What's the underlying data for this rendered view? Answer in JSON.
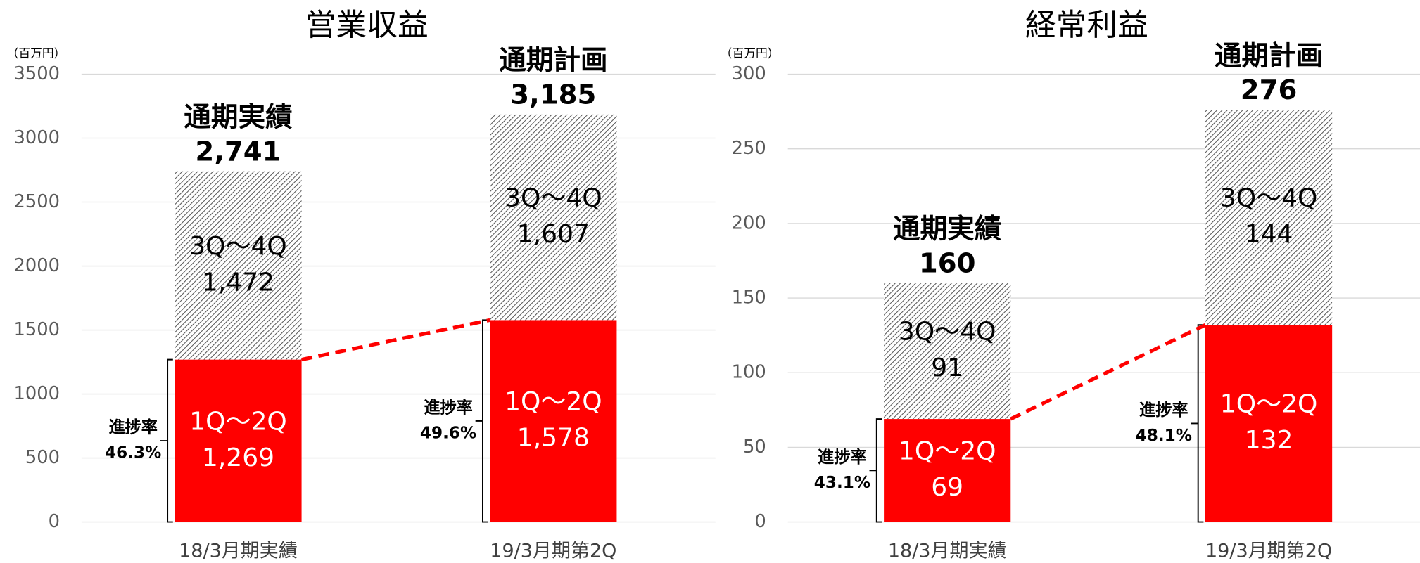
{
  "chart_data": [
    {
      "type": "stacked_bar",
      "title": "営業収益",
      "unit": "（百万円）",
      "categories": [
        "18/3月期実績",
        "19/3月期第2Q"
      ],
      "series": [
        {
          "name": "1Q～2Q",
          "color": "#ff0000",
          "values": [
            1269,
            1578
          ],
          "value_labels": [
            "1,269",
            "1,578"
          ]
        },
        {
          "name": "3Q～4Q",
          "color": "hatch",
          "values": [
            1472,
            1607
          ],
          "value_labels": [
            "1,472",
            "1,607"
          ]
        }
      ],
      "total_names": [
        "通期実績",
        "通期計画"
      ],
      "totals": [
        2741,
        3185
      ],
      "total_labels": [
        "2,741",
        "3,185"
      ],
      "progress_title": "進捗率",
      "progress": [
        46.3,
        49.6
      ],
      "progress_labels": [
        "46.3%",
        "49.6%"
      ],
      "ylim": [
        0,
        3500
      ],
      "yticks": [
        0,
        500,
        1000,
        1500,
        2000,
        2500,
        3000,
        3500
      ],
      "grid": true
    },
    {
      "type": "stacked_bar",
      "title": "経常利益",
      "unit": "（百万円）",
      "categories": [
        "18/3月期実績",
        "19/3月期第2Q"
      ],
      "series": [
        {
          "name": "1Q～2Q",
          "color": "#ff0000",
          "values": [
            69,
            132
          ]
        },
        {
          "name": "3Q～4Q",
          "color": "hatch",
          "values": [
            91,
            144
          ]
        }
      ],
      "total_names": [
        "通期実績",
        "通期計画"
      ],
      "totals": [
        160,
        276
      ],
      "progress_title": "進捗率",
      "progress": [
        43.1,
        48.1
      ],
      "progress_labels": [
        "43.1%",
        "48.1%"
      ],
      "ylim": [
        0,
        300
      ],
      "yticks": [
        0,
        50,
        100,
        150,
        200,
        250,
        300
      ],
      "grid": true
    }
  ]
}
